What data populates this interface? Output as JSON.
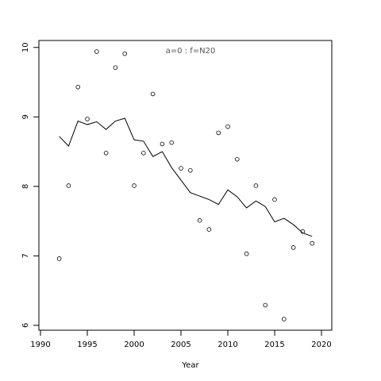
{
  "chart_data": {
    "type": "scatter",
    "annotation": "a=0  :  f=N20",
    "xlabel": "Year",
    "x": [
      1992,
      1993,
      1994,
      1995,
      1996,
      1997,
      1998,
      1999,
      2000,
      2001,
      2002,
      2003,
      2004,
      2005,
      2006,
      2007,
      2008,
      2009,
      2010,
      2011,
      2012,
      2013,
      2014,
      2015,
      2016,
      2017,
      2018,
      2019
    ],
    "series": [
      {
        "style": "points",
        "color": "#000000",
        "values": [
          6.96,
          8.01,
          9.43,
          8.97,
          9.94,
          8.48,
          9.71,
          9.91,
          8.01,
          8.48,
          9.33,
          8.61,
          8.63,
          8.26,
          8.23,
          7.51,
          7.38,
          8.77,
          8.86,
          8.39,
          7.03,
          8.01,
          6.29,
          7.81,
          6.09,
          7.12,
          7.35,
          7.18
        ]
      },
      {
        "style": "line",
        "color": "#000000",
        "values": [
          8.72,
          8.58,
          8.94,
          8.89,
          8.93,
          8.82,
          8.94,
          8.98,
          8.67,
          8.65,
          8.43,
          8.5,
          8.27,
          8.09,
          7.91,
          7.86,
          7.81,
          7.74,
          7.95,
          7.85,
          7.69,
          7.79,
          7.71,
          7.49,
          7.54,
          7.45,
          7.33,
          7.28
        ]
      }
    ],
    "xlim": [
      1989.83,
      2021.1
    ],
    "ylim": [
      5.93,
      10.1
    ],
    "xticks": [
      1990,
      1995,
      2000,
      2005,
      2010,
      2015,
      2020
    ],
    "yticks": [
      6,
      7,
      8,
      9,
      10
    ]
  }
}
